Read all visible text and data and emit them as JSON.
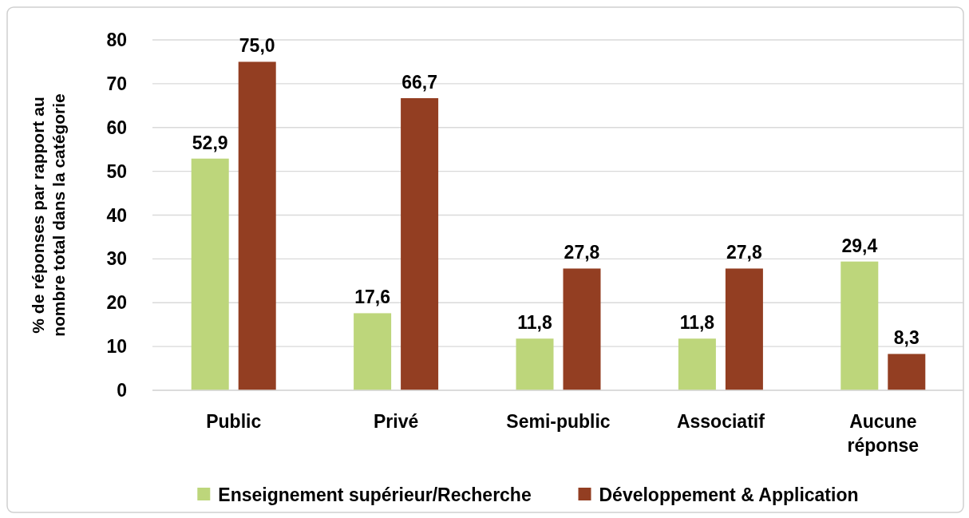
{
  "chart_data": {
    "type": "bar",
    "ylabel": "% de réponses par rapport au nombre total dans la catégorie",
    "categories": [
      "Public",
      "Privé",
      "Semi-public",
      "Associatif",
      "Aucune réponse"
    ],
    "series": [
      {
        "name": "Enseignement supérieur/Recherche",
        "color": "#bdd67b",
        "values": [
          52.9,
          17.6,
          11.8,
          11.8,
          29.4
        ],
        "value_labels": [
          "52,9",
          "17,6",
          "11,8",
          "11,8",
          "29,4"
        ]
      },
      {
        "name": "Développement & Application",
        "color": "#933e22",
        "values": [
          75.0,
          66.7,
          27.8,
          27.8,
          8.3
        ],
        "value_labels": [
          "75,0",
          "66,7",
          "27,8",
          "27,8",
          "8,3"
        ]
      }
    ],
    "ylim": [
      0,
      80
    ],
    "yticks": [
      0,
      10,
      20,
      30,
      40,
      50,
      60,
      70,
      80
    ],
    "grid": "y",
    "legend": "bottom"
  }
}
